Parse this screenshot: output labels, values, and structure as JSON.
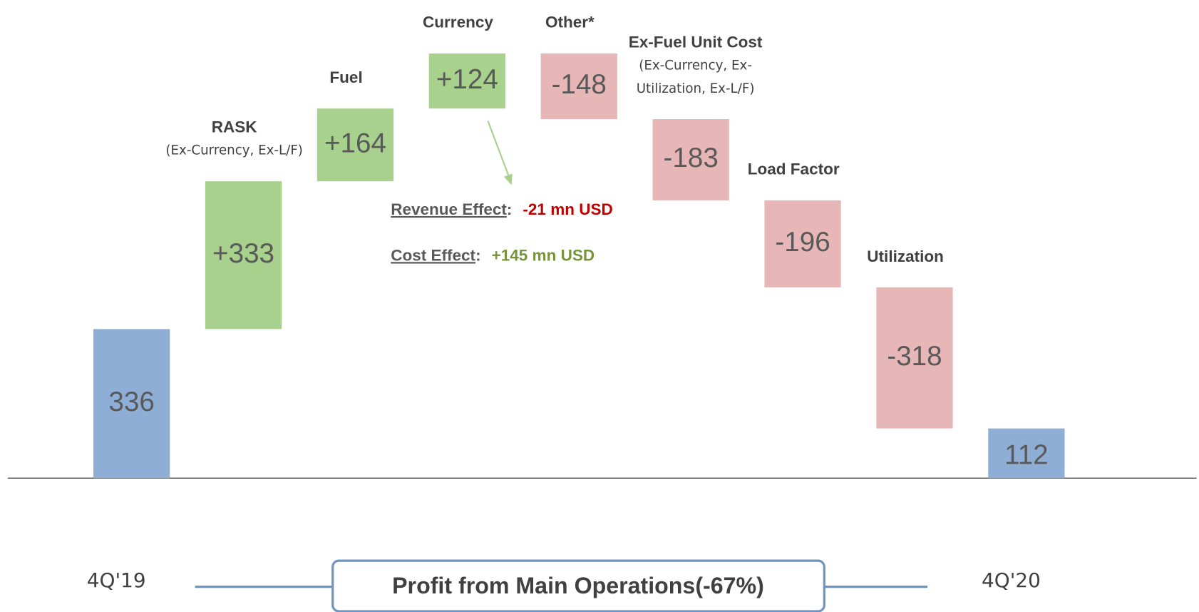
{
  "chart_data": {
    "type": "waterfall",
    "categories": [
      "4Q'19",
      "RASK",
      "Fuel",
      "Currency",
      "Other*",
      "Ex-Fuel Unit Cost",
      "Load Factor",
      "Utilization",
      "4Q'20"
    ],
    "category_notes": [
      null,
      "(Ex-Currency, Ex-L/F)",
      null,
      null,
      null,
      "(Ex-Currency, Ex-Utilization, Ex-L/F)",
      null,
      null,
      null
    ],
    "kinds": [
      "total",
      "delta",
      "delta",
      "delta",
      "delta",
      "delta",
      "delta",
      "delta",
      "total"
    ],
    "values": [
      336,
      333,
      164,
      124,
      -148,
      -183,
      -196,
      -318,
      112
    ],
    "value_labels": [
      "336",
      "+333",
      "+164",
      "+124",
      "-148",
      "-183",
      "-196",
      "-318",
      "112"
    ],
    "colors": {
      "total": "#8faed5",
      "increase": "#a9d18e",
      "decrease": "#e7b7b7"
    },
    "ylim": [
      0,
      1000
    ],
    "annotations": [
      {
        "label": "Revenue Effect",
        "separator": ":",
        "value": "-21 mn USD",
        "color": "#c00000"
      },
      {
        "label": "Cost Effect",
        "separator": ":",
        "value": "+145 mn USD",
        "color": "#77933c"
      }
    ],
    "footer": "Profit from Main Operations(-67%)"
  }
}
